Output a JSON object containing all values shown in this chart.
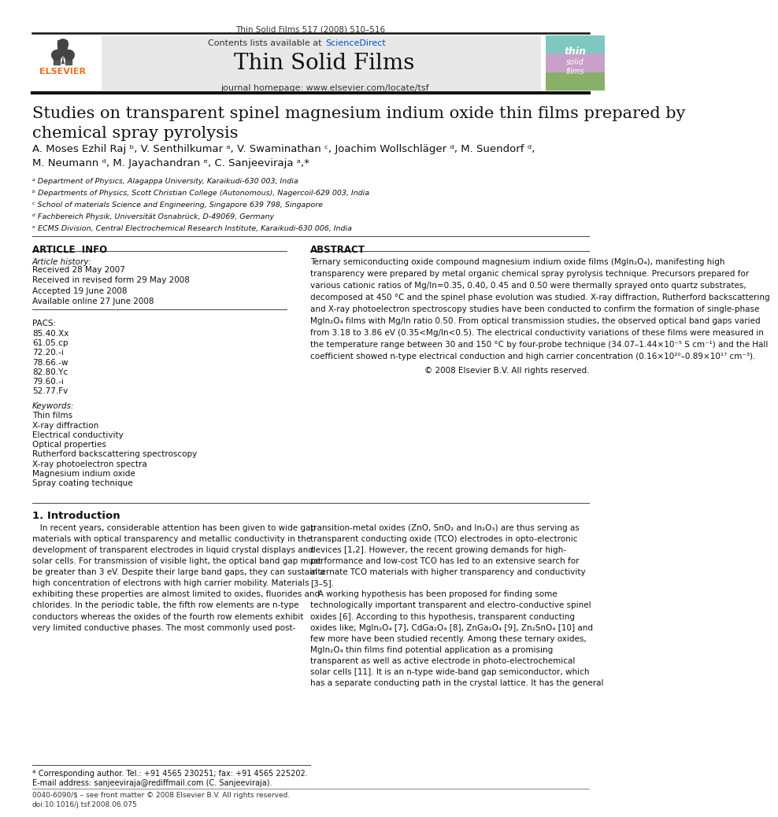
{
  "bg_color": "#ffffff",
  "header_journal_text": "Thin Solid Films 517 (2008) 510–516",
  "banner_bg": "#e8e8e8",
  "banner_contents_text": "Contents lists available at ",
  "banner_sciencedirect_text": "ScienceDirect",
  "banner_sciencedirect_color": "#0055cc",
  "banner_journal_title": "Thin Solid Films",
  "banner_homepage_text": "journal homepage: www.elsevier.com/locate/tsf",
  "article_title": "Studies on transparent spinel magnesium indium oxide thin films prepared by\nchemical spray pyrolysis",
  "authors": "A. Moses Ezhil Raj ᵇ, V. Senthilkumar ᵃ, V. Swaminathan ᶜ, Joachim Wollschläger ᵈ, M. Suendorf ᵈ,\nM. Neumann ᵈ, M. Jayachandran ᵉ, C. Sanjeeviraja ᵃ,*",
  "affiliations": [
    "ᵃ Department of Physics, Alagappa University, Karaikudi-630 003, India",
    "ᵇ Departments of Physics, Scott Christian College (Autonomous), Nagercoil-629 003, India",
    "ᶜ School of materials Science and Engineering, Singapore 639 798, Singapore",
    "ᵈ Fachbereich Physik, Universität Osnabrück, D-49069, Germany",
    "ᵉ ECMS Division, Central Electrochemical Research Institute, Karaikudi-630 006, India"
  ],
  "article_info_title": "ARTICLE  INFO",
  "abstract_title": "ABSTRACT",
  "article_history_label": "Article history:",
  "article_history_entries": [
    "Received 28 May 2007",
    "Received in revised form 29 May 2008",
    "Accepted 19 June 2008",
    "Available online 27 June 2008"
  ],
  "pacs_label": "PACS:",
  "pacs_entries": [
    "85.40.Xx",
    "61.05.cp",
    "72.20.-i",
    "78.66.-w",
    "82.80.Yc",
    "79.60.-i",
    "52.77.Fv"
  ],
  "keywords_label": "Keywords:",
  "keywords_entries": [
    "Thin films",
    "X-ray diffraction",
    "Electrical conductivity",
    "Optical properties",
    "Rutherford backscattering spectroscopy",
    "X-ray photoelectron spectra",
    "Magnesium indium oxide",
    "Spray coating technique"
  ],
  "abstract_text": "Ternary semiconducting oxide compound magnesium indium oxide films (MgIn₂O₄), manifesting high\ntransparency were prepared by metal organic chemical spray pyrolysis technique. Precursors prepared for\nvarious cationic ratios of Mg/In=0.35, 0.40, 0.45 and 0.50 were thermally sprayed onto quartz substrates,\ndecomposed at 450 °C and the spinel phase evolution was studied. X-ray diffraction, Rutherford backscattering\nand X-ray photoelectron spectroscopy studies have been conducted to confirm the formation of single-phase\nMgIn₂O₄ films with Mg/In ratio 0.50. From optical transmission studies, the observed optical band gaps varied\nfrom 3.18 to 3.86 eV (0.35<Mg/In<0.5). The electrical conductivity variations of these films were measured in\nthe temperature range between 30 and 150 °C by four-probe technique (34.07–1.44×10⁻⁵ S cm⁻¹) and the Hall\ncoefficient showed n-type electrical conduction and high carrier concentration (0.16×10²⁰–0.89×10¹⁷ cm⁻³).",
  "abstract_copyright": "© 2008 Elsevier B.V. All rights reserved.",
  "intro_title": "1. Introduction",
  "intro_col1": [
    "   In recent years, considerable attention has been given to wide gap",
    "materials with optical transparency and metallic conductivity in the",
    "development of transparent electrodes in liquid crystal displays and",
    "solar cells. For transmission of visible light, the optical band gap must",
    "be greater than 3 eV. Despite their large band gaps, they can sustain a",
    "high concentration of electrons with high carrier mobility. Materials",
    "exhibiting these properties are almost limited to oxides, fluorides and",
    "chlorides. In the periodic table, the fifth row elements are n-type",
    "conductors whereas the oxides of the fourth row elements exhibit",
    "very limited conductive phases. The most commonly used post-"
  ],
  "intro_col2": [
    "transition-metal oxides (ZnO, SnO₂ and In₂O₃) are thus serving as",
    "transparent conducting oxide (TCO) electrodes in opto-electronic",
    "devices [1,2]. However, the recent growing demands for high-",
    "performance and low-cost TCO has led to an extensive search for",
    "alternate TCO materials with higher transparency and conductivity",
    "[3–5].",
    "   A working hypothesis has been proposed for finding some",
    "technologically important transparent and electro-conductive spinel",
    "oxides [6]. According to this hypothesis, transparent conducting",
    "oxides like; MgIn₂O₄ [7], CdGa₂O₄ [8], ZnGa₂O₄ [9], Zn₂SnO₄ [10] and",
    "few more have been studied recently. Among these ternary oxides,",
    "MgIn₂O₄ thin films find potential application as a promising",
    "transparent as well as active electrode in photo-electrochemical",
    "solar cells [11]. It is an n-type wide-band gap semiconductor, which",
    "has a separate conducting path in the crystal lattice. It has the general"
  ],
  "footnote_star": "* Corresponding author. Tel.: +91 4565 230251; fax: +91 4565 225202.",
  "footnote_email": "E-mail address: sanjeeviraja@rediffmail.com (C. Sanjeeviraja).",
  "footer_text": "0040-6090/$ – see front matter © 2008 Elsevier B.V. All rights reserved.\ndoi:10.1016/j.tsf.2008.06.075",
  "cover_colors": [
    "#7ec8c0",
    "#c8a0c8",
    "#88b068"
  ],
  "cover_text": "thin\nsolid\nfilms"
}
